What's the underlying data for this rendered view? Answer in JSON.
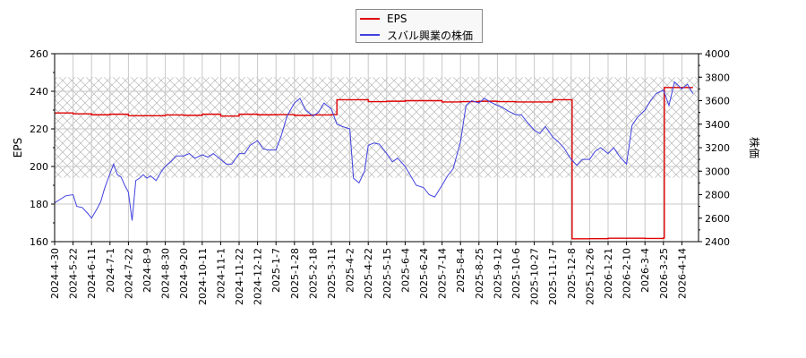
{
  "chart_data": {
    "type": "line",
    "title": "",
    "legend": {
      "position": "top-center",
      "entries": [
        {
          "label": "EPS",
          "color": "#e00000"
        },
        {
          "label": "スバル興業の株価",
          "color": "#4040e0"
        }
      ]
    },
    "x_tick_labels": [
      "2024-4-30",
      "2024-5-22",
      "2024-6-11",
      "2024-7-1",
      "2024-7-22",
      "2024-8-9",
      "2024-8-30",
      "2024-9-20",
      "2024-10-11",
      "2024-11-1",
      "2024-11-22",
      "2024-12-12",
      "2025-1-7",
      "2025-1-28",
      "2025-2-18",
      "2025-3-11",
      "2025-4-2",
      "2025-4-22",
      "2025-5-15",
      "2025-6-4",
      "2025-6-24",
      "2025-7-14",
      "2025-8-4",
      "2025-8-25",
      "2025-9-12",
      "2025-10-6",
      "2025-10-27",
      "2025-11-17",
      "2025-12-8",
      "2025-12-26",
      "2026-1-21",
      "2026-2-10",
      "2026-3-4",
      "2026-3-25",
      "2026-4-14"
    ],
    "left_axis": {
      "label": "EPS",
      "ylim": [
        160,
        260
      ],
      "ticks": [
        160,
        180,
        200,
        220,
        240,
        260
      ]
    },
    "right_axis": {
      "label": "株価",
      "ylim": [
        2400,
        4000
      ],
      "ticks": [
        2400,
        2600,
        2800,
        3000,
        3200,
        3400,
        3600,
        3800,
        4000
      ]
    },
    "grid": true,
    "hatched_band": {
      "axis": "left",
      "from": 194,
      "to": 247.5
    },
    "series": [
      {
        "name": "EPS",
        "axis": "left",
        "color": "#e00000",
        "x_index": [
          0,
          1,
          2,
          3,
          4,
          5,
          6,
          7,
          8,
          9,
          10,
          11,
          12,
          13,
          14,
          15,
          15.3,
          16,
          17,
          18,
          19,
          20,
          21,
          22,
          23,
          24,
          25,
          26,
          27,
          28,
          28.05,
          29,
          30,
          31,
          32,
          33,
          33.05,
          34,
          34.6
        ],
        "values": [
          228.5,
          228,
          227.5,
          227.8,
          227,
          227,
          227.4,
          227.2,
          227.8,
          226.8,
          227.8,
          227.5,
          227.6,
          227.2,
          227.4,
          227.6,
          235.5,
          235.5,
          234.5,
          234.7,
          235,
          235,
          234.3,
          234.5,
          234.7,
          234.5,
          234.3,
          234.3,
          235.5,
          235.5,
          161.5,
          161.6,
          161.8,
          161.8,
          161.7,
          162,
          242,
          242,
          242
        ]
      },
      {
        "name": "スバル興業の株価",
        "axis": "right",
        "color": "#4040e0",
        "x_index": [
          0,
          0.3,
          0.6,
          1,
          1.2,
          1.5,
          1.8,
          2,
          2.3,
          2.5,
          2.7,
          3,
          3.2,
          3.4,
          3.6,
          3.8,
          4,
          4.2,
          4.4,
          4.6,
          4.8,
          5,
          5.2,
          5.5,
          5.8,
          6,
          6.3,
          6.6,
          7,
          7.3,
          7.6,
          8,
          8.3,
          8.6,
          9,
          9.3,
          9.6,
          10,
          10.3,
          10.6,
          11,
          11.3,
          11.6,
          12,
          12.3,
          12.6,
          13,
          13.3,
          13.6,
          14,
          14.3,
          14.6,
          15,
          15.3,
          15.6,
          16,
          16.2,
          16.5,
          16.8,
          17,
          17.3,
          17.6,
          18,
          18.3,
          18.6,
          19,
          19.3,
          19.6,
          20,
          20.3,
          20.6,
          21,
          21.3,
          21.6,
          22,
          22.3,
          22.6,
          23,
          23.3,
          23.6,
          24,
          24.3,
          24.6,
          25,
          25.3,
          25.6,
          26,
          26.3,
          26.6,
          27,
          27.3,
          27.6,
          28,
          28.3,
          28.6,
          29,
          29.3,
          29.6,
          30,
          30.3,
          30.6,
          31,
          31.3,
          31.6,
          32,
          32.3,
          32.6,
          33,
          33.3,
          33.6,
          34,
          34.3,
          34.6
        ],
        "values": [
          2730,
          2760,
          2790,
          2800,
          2700,
          2690,
          2640,
          2600,
          2680,
          2740,
          2850,
          2980,
          3060,
          2970,
          2950,
          2880,
          2820,
          2580,
          2920,
          2940,
          2970,
          2940,
          2960,
          2920,
          3000,
          3040,
          3080,
          3130,
          3130,
          3150,
          3110,
          3140,
          3120,
          3150,
          3100,
          3060,
          3060,
          3150,
          3150,
          3220,
          3260,
          3190,
          3180,
          3180,
          3310,
          3470,
          3580,
          3620,
          3520,
          3470,
          3500,
          3580,
          3530,
          3400,
          3380,
          3360,
          2940,
          2900,
          3000,
          3220,
          3240,
          3230,
          3150,
          3080,
          3110,
          3040,
          2960,
          2880,
          2860,
          2800,
          2780,
          2880,
          2960,
          3020,
          3250,
          3560,
          3600,
          3580,
          3620,
          3590,
          3560,
          3540,
          3510,
          3480,
          3480,
          3420,
          3350,
          3320,
          3380,
          3290,
          3250,
          3200,
          3100,
          3050,
          3100,
          3100,
          3170,
          3200,
          3150,
          3200,
          3130,
          3060,
          3390,
          3460,
          3520,
          3600,
          3660,
          3690,
          3560,
          3760,
          3700,
          3740,
          3660,
          3600,
          3520
        ]
      }
    ]
  }
}
